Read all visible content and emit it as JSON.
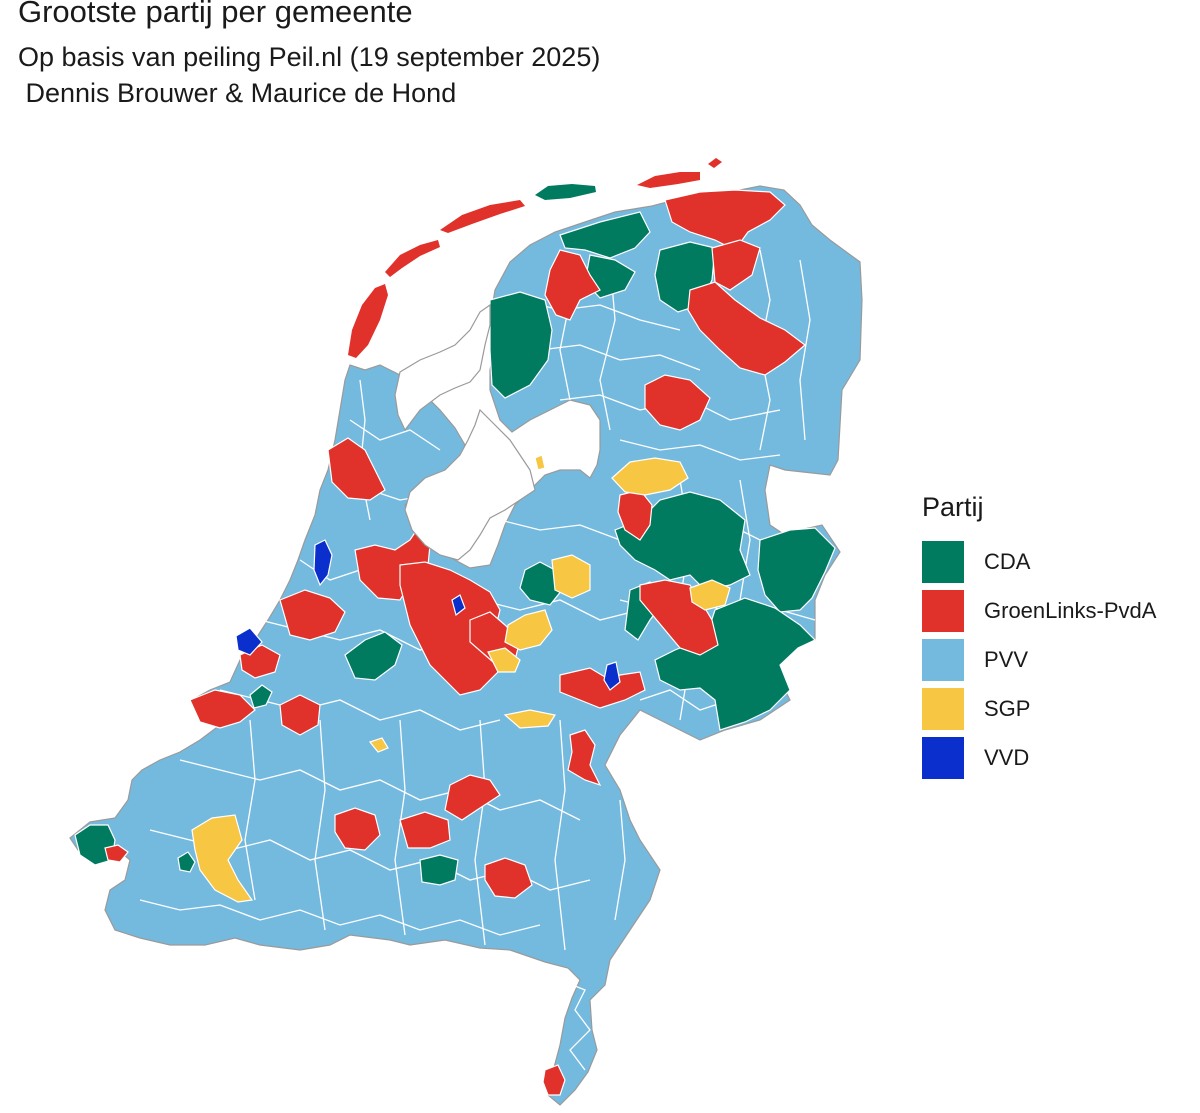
{
  "title": "Grootste partij per gemeente",
  "subtitle": "Op basis van peiling Peil.nl (19 september 2025)",
  "author": " Dennis Brouwer & Maurice de Hond",
  "legend": {
    "title": "Partij",
    "items": [
      {
        "label": "CDA",
        "color": "#007B5F"
      },
      {
        "label": "GroenLinks-PvdA",
        "color": "#E0312A"
      },
      {
        "label": "PVV",
        "color": "#74BADF"
      },
      {
        "label": "SGP",
        "color": "#F7C744"
      },
      {
        "label": "VVD",
        "color": "#0B2FCC"
      }
    ]
  },
  "map": {
    "background": "#74BADF",
    "border_color": "#ffffff",
    "outline_color": "#9a9a9a"
  }
}
